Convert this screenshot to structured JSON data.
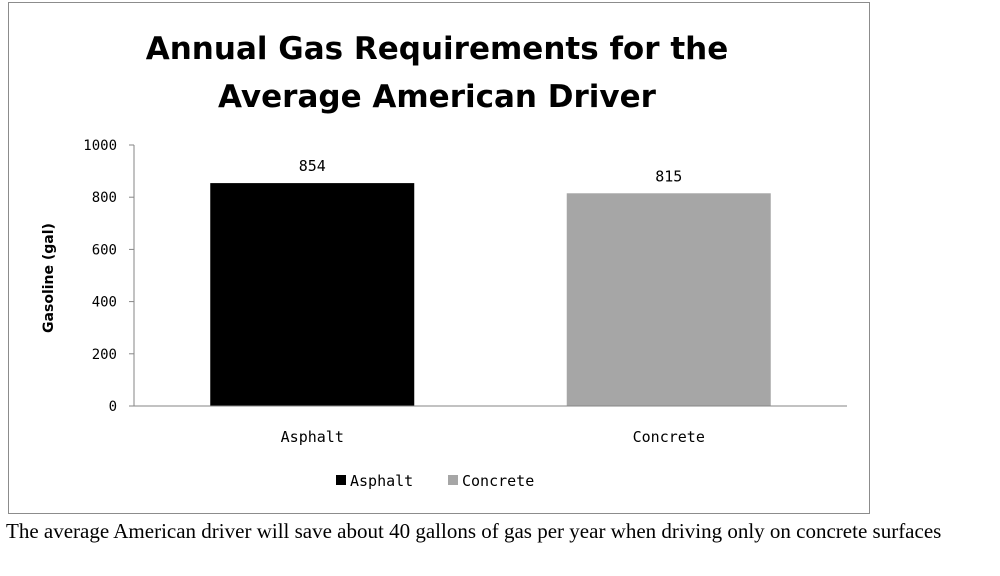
{
  "chart_data": {
    "type": "bar",
    "title_lines": [
      "Annual Gas Requirements for the",
      "Average American Driver"
    ],
    "ylabel": "Gasoline (gal)",
    "xlabel": "",
    "categories": [
      "Asphalt",
      "Concrete"
    ],
    "values": [
      854,
      815
    ],
    "data_labels": [
      "854",
      "815"
    ],
    "colors": [
      "#000000",
      "#a6a6a6"
    ],
    "ylim": [
      0,
      1000
    ],
    "yticks": [
      0,
      200,
      400,
      600,
      800,
      1000
    ],
    "grid": false,
    "legend": {
      "position": "bottom",
      "entries": [
        {
          "label": "Asphalt",
          "color": "#000000"
        },
        {
          "label": "Concrete",
          "color": "#a6a6a6"
        }
      ]
    }
  },
  "caption": "The average American driver will save about 40 gallons of gas per year when driving only on concrete surfaces"
}
